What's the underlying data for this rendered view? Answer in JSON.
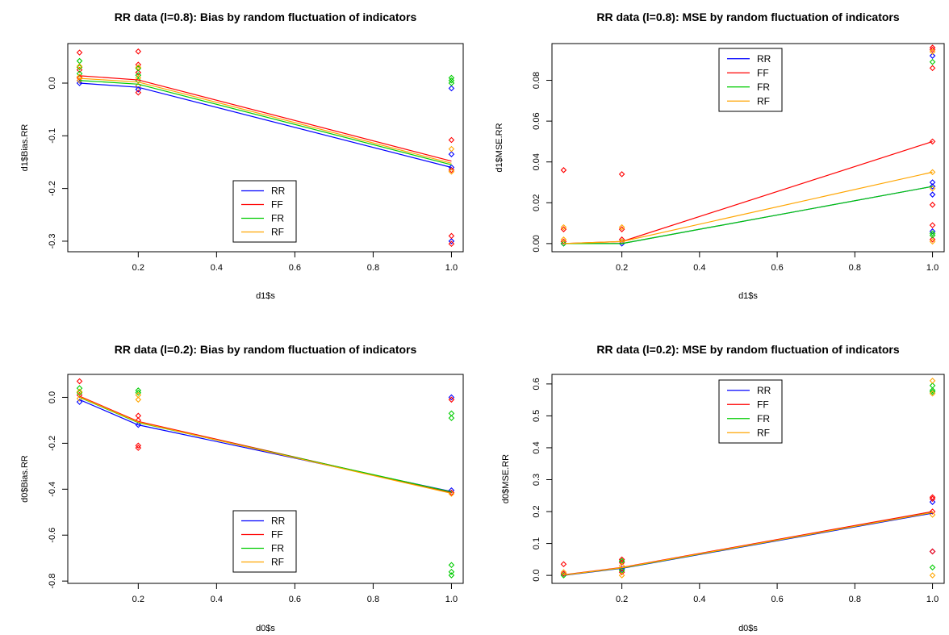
{
  "colors": {
    "RR": "#0000ff",
    "FF": "#ff0000",
    "FR": "#00cc00",
    "RF": "#ffa500"
  },
  "chart_data": [
    {
      "type": "scatter",
      "title": "RR data (l=0.8): Bias by random fluctuation of indicators",
      "xlabel": "d1$s",
      "ylabel": "d1$Bias.RR",
      "xlim": [
        0.02,
        1.03
      ],
      "ylim": [
        -0.32,
        0.075
      ],
      "xticks": [
        "0.2",
        "0.4",
        "0.6",
        "0.8",
        "1.0"
      ],
      "yticks": [
        "0.0",
        "-0.1",
        "-0.2",
        "-0.3"
      ],
      "legend_position": "bottom-center",
      "series": [
        {
          "name": "RR",
          "line": [
            [
              0.05,
              0.0
            ],
            [
              0.2,
              -0.008
            ],
            [
              1.0,
              -0.16
            ]
          ],
          "points": [
            [
              0.05,
              0.005
            ],
            [
              0.05,
              0.0
            ],
            [
              0.2,
              -0.005
            ],
            [
              0.2,
              -0.012
            ],
            [
              1.0,
              -0.01
            ],
            [
              1.0,
              -0.135
            ],
            [
              1.0,
              -0.16
            ],
            [
              1.0,
              -0.3
            ]
          ]
        },
        {
          "name": "FF",
          "line": [
            [
              0.05,
              0.014
            ],
            [
              0.2,
              0.006
            ],
            [
              1.0,
              -0.148
            ]
          ],
          "points": [
            [
              0.05,
              0.058
            ],
            [
              0.05,
              0.025
            ],
            [
              0.05,
              0.01
            ],
            [
              0.2,
              0.06
            ],
            [
              0.2,
              0.035
            ],
            [
              0.2,
              0.02
            ],
            [
              0.2,
              -0.018
            ],
            [
              1.0,
              -0.108
            ],
            [
              1.0,
              -0.165
            ],
            [
              1.0,
              -0.29
            ],
            [
              1.0,
              -0.305
            ]
          ]
        },
        {
          "name": "FR",
          "line": [
            [
              0.05,
              0.005
            ],
            [
              0.2,
              -0.002
            ],
            [
              1.0,
              -0.155
            ]
          ],
          "points": [
            [
              0.05,
              0.042
            ],
            [
              0.05,
              0.03
            ],
            [
              0.05,
              0.018
            ],
            [
              0.2,
              0.028
            ],
            [
              0.2,
              0.015
            ],
            [
              0.2,
              0.005
            ],
            [
              1.0,
              0.01
            ],
            [
              1.0,
              0.005
            ],
            [
              1.0,
              0.0
            ]
          ]
        },
        {
          "name": "RF",
          "line": [
            [
              0.05,
              0.009
            ],
            [
              0.2,
              0.002
            ],
            [
              1.0,
              -0.152
            ]
          ],
          "points": [
            [
              0.05,
              0.032
            ],
            [
              0.05,
              0.012
            ],
            [
              0.05,
              0.005
            ],
            [
              0.2,
              0.03
            ],
            [
              0.2,
              0.01
            ],
            [
              0.2,
              -0.005
            ],
            [
              1.0,
              -0.125
            ],
            [
              1.0,
              -0.168
            ]
          ]
        }
      ]
    },
    {
      "type": "scatter",
      "title": "RR data (l=0.8): MSE by random fluctuation of indicators",
      "xlabel": "d1$s",
      "ylabel": "d1$MSE.RR",
      "xlim": [
        0.02,
        1.03
      ],
      "ylim": [
        -0.004,
        0.098
      ],
      "xticks": [
        "0.2",
        "0.4",
        "0.6",
        "0.8",
        "1.0"
      ],
      "yticks": [
        "0.00",
        "0.02",
        "0.04",
        "0.06",
        "0.08"
      ],
      "legend_position": "top-center",
      "series": [
        {
          "name": "RR",
          "line": [
            [
              0.05,
              0.0
            ],
            [
              0.2,
              0.0
            ],
            [
              1.0,
              0.028
            ]
          ],
          "points": [
            [
              0.05,
              0.0
            ],
            [
              0.2,
              0.0
            ],
            [
              1.0,
              0.092
            ],
            [
              1.0,
              0.03
            ],
            [
              1.0,
              0.028
            ],
            [
              1.0,
              0.024
            ],
            [
              1.0,
              0.006
            ]
          ]
        },
        {
          "name": "FF",
          "line": [
            [
              0.05,
              0.0
            ],
            [
              0.2,
              0.001
            ],
            [
              1.0,
              0.05
            ]
          ],
          "points": [
            [
              0.05,
              0.036
            ],
            [
              0.05,
              0.007
            ],
            [
              0.05,
              0.001
            ],
            [
              0.2,
              0.034
            ],
            [
              0.2,
              0.007
            ],
            [
              0.2,
              0.002
            ],
            [
              1.0,
              0.096
            ],
            [
              1.0,
              0.095
            ],
            [
              1.0,
              0.086
            ],
            [
              1.0,
              0.05
            ],
            [
              1.0,
              0.019
            ],
            [
              1.0,
              0.009
            ],
            [
              1.0,
              0.002
            ]
          ]
        },
        {
          "name": "FR",
          "line": [
            [
              0.05,
              0.0
            ],
            [
              0.2,
              0.0
            ],
            [
              1.0,
              0.028
            ]
          ],
          "points": [
            [
              0.05,
              0.0
            ],
            [
              0.2,
              0.001
            ],
            [
              1.0,
              0.089
            ],
            [
              1.0,
              0.005
            ],
            [
              1.0,
              0.004
            ]
          ]
        },
        {
          "name": "RF",
          "line": [
            [
              0.05,
              0.0
            ],
            [
              0.2,
              0.001
            ],
            [
              1.0,
              0.035
            ]
          ],
          "points": [
            [
              0.05,
              0.008
            ],
            [
              0.05,
              0.002
            ],
            [
              0.2,
              0.008
            ],
            [
              0.2,
              0.001
            ],
            [
              1.0,
              0.094
            ],
            [
              1.0,
              0.035
            ],
            [
              1.0,
              0.027
            ],
            [
              1.0,
              0.001
            ]
          ]
        }
      ]
    },
    {
      "type": "scatter",
      "title": "RR data (l=0.2): Bias by random fluctuation of indicators",
      "xlabel": "d0$s",
      "ylabel": "d0$Bias.RR",
      "xlim": [
        0.02,
        1.03
      ],
      "ylim": [
        -0.81,
        0.1
      ],
      "xticks": [
        "0.2",
        "0.4",
        "0.6",
        "0.8",
        "1.0"
      ],
      "yticks": [
        "0.0",
        "-0.2",
        "-0.4",
        "-0.6",
        "-0.8"
      ],
      "legend_position": "bottom-center",
      "series": [
        {
          "name": "RR",
          "line": [
            [
              0.05,
              -0.01
            ],
            [
              0.2,
              -0.12
            ],
            [
              1.0,
              -0.41
            ]
          ],
          "points": [
            [
              0.05,
              -0.02
            ],
            [
              0.2,
              -0.12
            ],
            [
              1.0,
              -0.405
            ],
            [
              1.0,
              -0.0
            ]
          ]
        },
        {
          "name": "FF",
          "line": [
            [
              0.05,
              0.005
            ],
            [
              0.2,
              -0.105
            ],
            [
              1.0,
              -0.415
            ]
          ],
          "points": [
            [
              0.05,
              0.07
            ],
            [
              0.05,
              0.01
            ],
            [
              0.2,
              -0.08
            ],
            [
              0.2,
              -0.1
            ],
            [
              0.2,
              -0.21
            ],
            [
              0.2,
              -0.22
            ],
            [
              1.0,
              -0.01
            ],
            [
              1.0,
              -0.415
            ]
          ]
        },
        {
          "name": "FR",
          "line": [
            [
              0.05,
              0.0
            ],
            [
              0.2,
              -0.11
            ],
            [
              1.0,
              -0.412
            ]
          ],
          "points": [
            [
              0.05,
              0.04
            ],
            [
              0.05,
              0.02
            ],
            [
              0.2,
              0.03
            ],
            [
              0.2,
              0.02
            ],
            [
              1.0,
              -0.07
            ],
            [
              1.0,
              -0.09
            ],
            [
              1.0,
              -0.73
            ],
            [
              1.0,
              -0.76
            ],
            [
              1.0,
              -0.775
            ]
          ]
        },
        {
          "name": "RF",
          "line": [
            [
              0.05,
              0.002
            ],
            [
              0.2,
              -0.108
            ],
            [
              1.0,
              -0.418
            ]
          ],
          "points": [
            [
              0.05,
              0.025
            ],
            [
              0.05,
              -0.005
            ],
            [
              0.2,
              0.01
            ],
            [
              0.2,
              -0.01
            ],
            [
              1.0,
              -0.42
            ]
          ]
        }
      ]
    },
    {
      "type": "scatter",
      "title": "RR data (l=0.2): MSE by random fluctuation of indicators",
      "xlabel": "d0$s",
      "ylabel": "d0$MSE.RR",
      "xlim": [
        0.02,
        1.03
      ],
      "ylim": [
        -0.025,
        0.63
      ],
      "xticks": [
        "0.2",
        "0.4",
        "0.6",
        "0.8",
        "1.0"
      ],
      "yticks": [
        "0.0",
        "0.1",
        "0.2",
        "0.3",
        "0.4",
        "0.5",
        "0.6"
      ],
      "legend_position": "top-center",
      "series": [
        {
          "name": "RR",
          "line": [
            [
              0.05,
              0.0
            ],
            [
              0.2,
              0.022
            ],
            [
              1.0,
              0.195
            ]
          ],
          "points": [
            [
              0.05,
              0.005
            ],
            [
              0.2,
              0.02
            ],
            [
              1.0,
              0.23
            ],
            [
              1.0,
              0.075
            ]
          ]
        },
        {
          "name": "FF",
          "line": [
            [
              0.05,
              0.002
            ],
            [
              0.2,
              0.025
            ],
            [
              1.0,
              0.2
            ]
          ],
          "points": [
            [
              0.05,
              0.035
            ],
            [
              0.05,
              0.005
            ],
            [
              0.2,
              0.05
            ],
            [
              0.2,
              0.04
            ],
            [
              0.2,
              0.01
            ],
            [
              1.0,
              0.245
            ],
            [
              1.0,
              0.24
            ],
            [
              1.0,
              0.2
            ],
            [
              1.0,
              0.075
            ]
          ]
        },
        {
          "name": "FR",
          "line": [
            [
              0.05,
              0.001
            ],
            [
              0.2,
              0.023
            ],
            [
              1.0,
              0.197
            ]
          ],
          "points": [
            [
              0.05,
              0.0
            ],
            [
              0.2,
              0.045
            ],
            [
              0.2,
              0.015
            ],
            [
              1.0,
              0.595
            ],
            [
              1.0,
              0.58
            ],
            [
              1.0,
              0.575
            ],
            [
              1.0,
              0.025
            ]
          ]
        },
        {
          "name": "RF",
          "line": [
            [
              0.05,
              0.001
            ],
            [
              0.2,
              0.024
            ],
            [
              1.0,
              0.197
            ]
          ],
          "points": [
            [
              0.05,
              0.01
            ],
            [
              0.2,
              0.03
            ],
            [
              0.2,
              0.0
            ],
            [
              1.0,
              0.61
            ],
            [
              1.0,
              0.57
            ],
            [
              1.0,
              0.19
            ],
            [
              1.0,
              0.0
            ]
          ]
        }
      ]
    }
  ]
}
